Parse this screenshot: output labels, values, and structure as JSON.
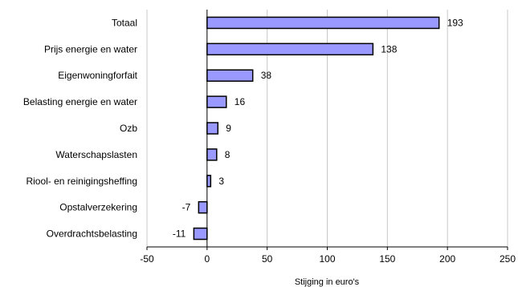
{
  "chart_data": {
    "type": "bar",
    "orientation": "horizontal",
    "categories": [
      "Totaal",
      "Prijs energie en water",
      "Eigenwoningforfait",
      "Belasting energie en water",
      "Ozb",
      "Waterschapslasten",
      "Riool- en reinigingsheffing",
      "Opstalverzekering",
      "Overdrachtsbelasting"
    ],
    "values": [
      193,
      138,
      38,
      16,
      9,
      8,
      3,
      -7,
      -11
    ],
    "data_labels": [
      "193",
      "138",
      "38",
      "16",
      "9",
      "8",
      "3",
      "-7",
      "-11"
    ],
    "xlabel": "Stijging in euro's",
    "ylabel": "",
    "title": "",
    "xlim": [
      -50,
      250
    ],
    "xticks": [
      -50,
      0,
      50,
      100,
      150,
      200,
      250
    ],
    "xtick_labels": [
      "-50",
      "0",
      "50",
      "100",
      "150",
      "200",
      "250"
    ],
    "grid": "vertical",
    "legend": "none",
    "bar_color": "#9999ff",
    "bar_edge_color": "#000000",
    "grid_color": "#c8c8c8"
  }
}
